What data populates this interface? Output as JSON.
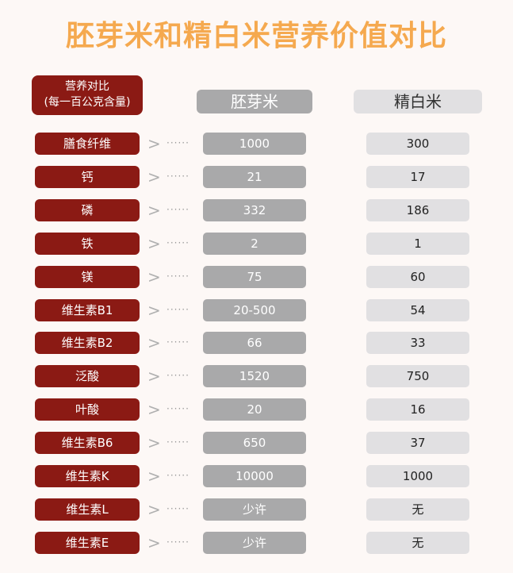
{
  "title": "胚芽米和精白米营养价值对比",
  "header": {
    "label_line1": "营养对比",
    "label_line2": "(每一百公克含量)",
    "col_a": "胚芽米",
    "col_b": "精白米"
  },
  "colors": {
    "title": "#f5a94f",
    "label_bg": "#8b1a14",
    "col_a_bg": "#a9a9aa",
    "col_b_bg": "#e1e0e2"
  },
  "rows": [
    {
      "label": "膳食纤维",
      "a": "1000",
      "b": "300"
    },
    {
      "label": "钙",
      "a": "21",
      "b": "17"
    },
    {
      "label": "磷",
      "a": "332",
      "b": "186"
    },
    {
      "label": "铁",
      "a": "2",
      "b": "1"
    },
    {
      "label": "镁",
      "a": "75",
      "b": "60"
    },
    {
      "label": "维生素B1",
      "a": "20-500",
      "b": "54"
    },
    {
      "label": "维生素B2",
      "a": "66",
      "b": "33"
    },
    {
      "label": "泛酸",
      "a": "1520",
      "b": "750"
    },
    {
      "label": "叶酸",
      "a": "20",
      "b": "16"
    },
    {
      "label": "维生素B6",
      "a": "650",
      "b": "37"
    },
    {
      "label": "维生素K",
      "a": "10000",
      "b": "1000"
    },
    {
      "label": "维生素L",
      "a": "少许",
      "b": "无"
    },
    {
      "label": "维生素E",
      "a": "少许",
      "b": "无"
    }
  ],
  "arrow_symbol": ">",
  "dots_symbol": "······"
}
